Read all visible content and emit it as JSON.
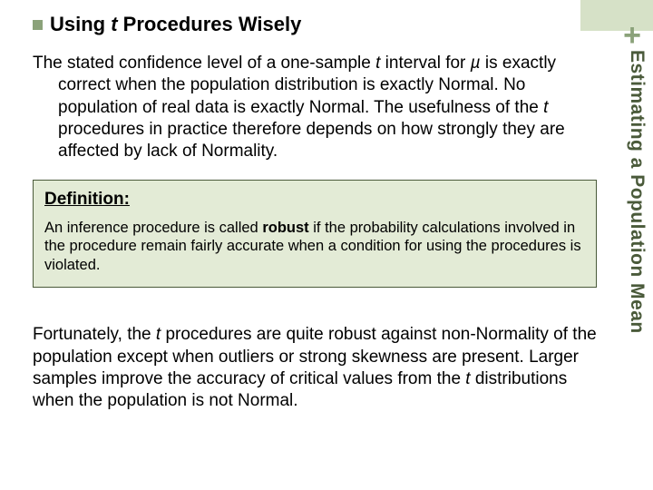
{
  "corner": {
    "bg": "#d6e1c7"
  },
  "plus": "+",
  "side_label": "Estimating a Population Mean",
  "heading": {
    "lead": "Using ",
    "italic": "t",
    "rest": " Procedures Wisely"
  },
  "para1": {
    "a": "The stated confidence level of a one-sample ",
    "t": "t",
    "b": " interval for ",
    "mu": "µ",
    "c": " is exactly correct when the population distribution is exactly Normal. No population of real data is exactly Normal. The usefulness of the ",
    "t2": "t",
    "d": " procedures in practice therefore depends on how strongly they are affected by lack of Normality."
  },
  "defbox": {
    "heading": "Definition:",
    "body_a": "An inference procedure is called ",
    "body_bold": "robust",
    "body_b": " if the probability calculations involved in the procedure remain fairly accurate when a condition for using the procedures is violated."
  },
  "para2": {
    "a": "Fortunately, the ",
    "t": "t",
    "b": " procedures are quite robust against non-Normality of the population except when outliers or strong skewness are present. Larger samples improve the accuracy of critical values from the ",
    "t2": "t",
    "c": " distributions when the population is not Normal."
  }
}
